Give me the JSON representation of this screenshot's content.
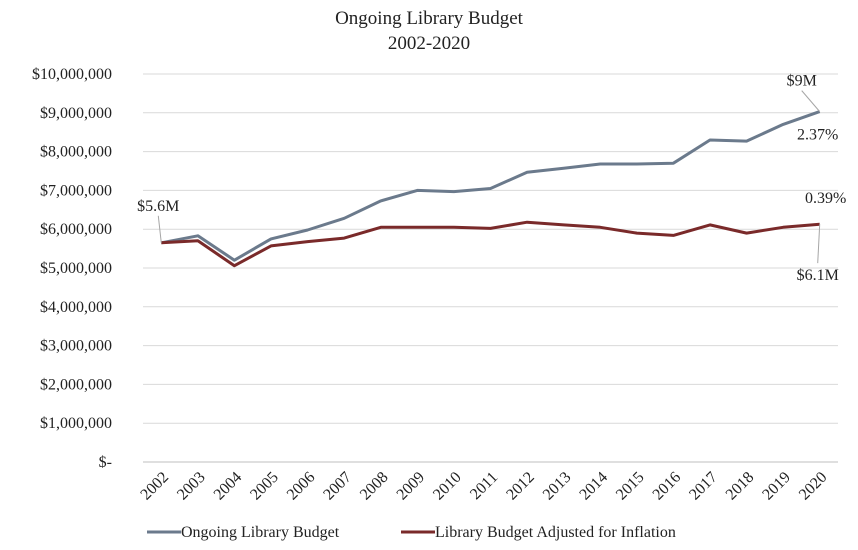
{
  "chart_data": {
    "type": "line",
    "title": "Ongoing Library Budget",
    "subtitle": "2002-2020",
    "xlabel": "",
    "ylabel": "",
    "categories": [
      "2002",
      "2003",
      "2004",
      "2005",
      "2006",
      "2007",
      "2008",
      "2009",
      "2010",
      "2011",
      "2012",
      "2013",
      "2014",
      "2015",
      "2016",
      "2017",
      "2018",
      "2019",
      "2020"
    ],
    "ylim": [
      0,
      10000000
    ],
    "yticks": [
      0,
      1000000,
      2000000,
      3000000,
      4000000,
      5000000,
      6000000,
      7000000,
      8000000,
      9000000,
      10000000
    ],
    "ytick_labels": [
      "$-",
      "$1,000,000",
      "$2,000,000",
      "$3,000,000",
      "$4,000,000",
      "$5,000,000",
      "$6,000,000",
      "$7,000,000",
      "$8,000,000",
      "$9,000,000",
      "$10,000,000"
    ],
    "grid": true,
    "legend_position": "bottom",
    "series": [
      {
        "name": "Ongoing Library Budget",
        "color": "#6b7a8c",
        "values": [
          5650000,
          5830000,
          5200000,
          5750000,
          5980000,
          6280000,
          6730000,
          7000000,
          6970000,
          7050000,
          7470000,
          7570000,
          7680000,
          7680000,
          7700000,
          8300000,
          8270000,
          8700000,
          9030000
        ]
      },
      {
        "name": "Library Budget Adjusted for Inflation",
        "color": "#7a2a2a",
        "values": [
          5650000,
          5700000,
          5060000,
          5570000,
          5680000,
          5770000,
          6050000,
          6050000,
          6050000,
          6020000,
          6180000,
          6110000,
          6050000,
          5900000,
          5840000,
          6110000,
          5900000,
          6050000,
          6130000
        ]
      }
    ],
    "annotations": [
      {
        "text": "$5.6M",
        "series": 0,
        "index": 0
      },
      {
        "text": "$9M",
        "series": 0,
        "index": 18
      },
      {
        "text": "2.37%",
        "series": 0,
        "index": 18
      },
      {
        "text": "0.39%",
        "series": 1,
        "index": 18
      },
      {
        "text": "$6.1M",
        "series": 1,
        "index": 18
      }
    ]
  }
}
